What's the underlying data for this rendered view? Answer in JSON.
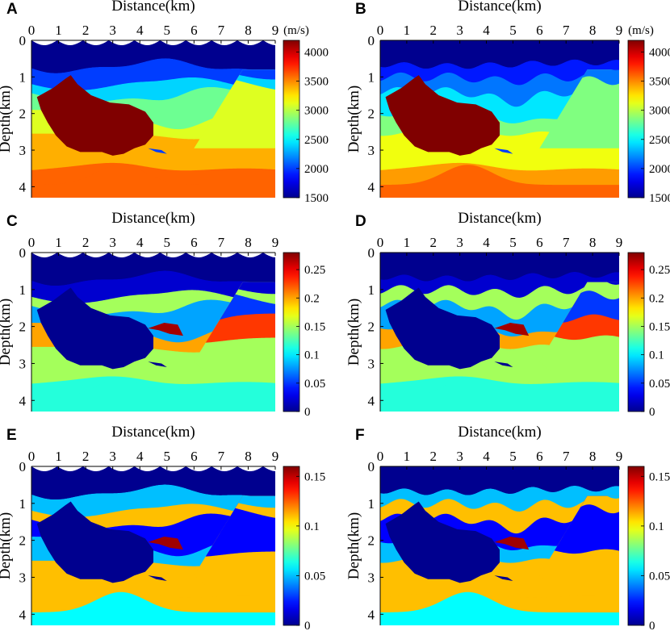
{
  "figure": {
    "panels": [
      {
        "letter": "A",
        "xlabel": "Distance(km)",
        "ylabel": "Depth(km)",
        "colorbar": {
          "ticks": [
            "1500",
            "2000",
            "2500",
            "3000",
            "3500",
            "4000"
          ],
          "unit": "(m/s)",
          "range": [
            1500,
            4200
          ]
        }
      },
      {
        "letter": "B",
        "xlabel": "Distance(km)",
        "ylabel": "Depth(km)",
        "colorbar": {
          "ticks": [
            "1500",
            "2000",
            "2500",
            "3000",
            "3500",
            "4000"
          ],
          "unit": "(m/s)",
          "range": [
            1500,
            4200
          ]
        }
      },
      {
        "letter": "C",
        "xlabel": "Distance(km)",
        "ylabel": "Depth(km)",
        "colorbar": {
          "ticks": [
            "0",
            "0.05",
            "0.1",
            "0.15",
            "0.2",
            "0.25"
          ],
          "unit": "",
          "range": [
            0,
            0.28
          ]
        }
      },
      {
        "letter": "D",
        "xlabel": "Distance(km)",
        "ylabel": "Depth(km)",
        "colorbar": {
          "ticks": [
            "0",
            "0.05",
            "0.1",
            "0.15",
            "0.2",
            "0.25"
          ],
          "unit": "",
          "range": [
            0,
            0.28
          ]
        }
      },
      {
        "letter": "E",
        "xlabel": "Distance(km)",
        "ylabel": "Depth(km)",
        "colorbar": {
          "ticks": [
            "0",
            "0.05",
            "0.1",
            "0.15"
          ],
          "unit": "",
          "range": [
            0,
            0.16
          ]
        }
      },
      {
        "letter": "F",
        "xlabel": "Distance(km)",
        "ylabel": "Depth(km)",
        "colorbar": {
          "ticks": [
            "0",
            "0.05",
            "0.1",
            "0.15"
          ],
          "unit": "",
          "range": [
            0,
            0.16
          ]
        }
      }
    ]
  },
  "chart_data": [
    {
      "type": "heatmap",
      "panel": "A",
      "title": "",
      "xlabel": "Distance(km)",
      "ylabel": "Depth(km)",
      "x_ticks": [
        "0",
        "1",
        "2",
        "3",
        "4",
        "5",
        "6",
        "7",
        "8",
        "9"
      ],
      "y_ticks": [
        "0",
        "1",
        "2",
        "3",
        "4"
      ],
      "xlim": [
        0,
        9
      ],
      "ylim": [
        0,
        4.3
      ],
      "colorbar_ticks": [
        1500,
        2000,
        2500,
        3000,
        3500,
        4000
      ],
      "colorbar_unit": "(m/s)",
      "crange": [
        1500,
        4200
      ],
      "layers_top_to_bottom": [
        1500,
        2000,
        2400,
        2800,
        3100,
        3400,
        3600
      ],
      "salt_body": 4200,
      "fault_x_km": [
        6.0,
        7.8
      ]
    },
    {
      "type": "heatmap",
      "panel": "B",
      "title": "",
      "xlabel": "Distance(km)",
      "ylabel": "Depth(km)",
      "x_ticks": [
        "0",
        "1",
        "2",
        "3",
        "4",
        "5",
        "6",
        "7",
        "8",
        "9"
      ],
      "y_ticks": [
        "0",
        "1",
        "2",
        "3",
        "4"
      ],
      "xlim": [
        0,
        9
      ],
      "ylim": [
        0,
        4.3
      ],
      "colorbar_ticks": [
        1500,
        2000,
        2500,
        3000,
        3500,
        4000
      ],
      "colorbar_unit": "(m/s)",
      "crange": [
        1500,
        4200
      ],
      "layers_top_to_bottom": [
        1500,
        1900,
        2100,
        2400,
        2800,
        3100,
        3400,
        3600
      ],
      "salt_body": 4200,
      "fault_x_km": [
        6.0,
        7.8
      ]
    },
    {
      "type": "heatmap",
      "panel": "C",
      "title": "",
      "xlabel": "Distance(km)",
      "ylabel": "Depth(km)",
      "x_ticks": [
        "0",
        "1",
        "2",
        "3",
        "4",
        "5",
        "6",
        "7",
        "8",
        "9"
      ],
      "y_ticks": [
        "0",
        "1",
        "2",
        "3",
        "4"
      ],
      "xlim": [
        0,
        9
      ],
      "ylim": [
        0,
        4.3
      ],
      "colorbar_ticks": [
        0,
        0.05,
        0.1,
        0.15,
        0.2,
        0.25
      ],
      "crange": [
        0,
        0.28
      ],
      "layers_top_to_bottom": [
        0,
        0.02,
        0.15,
        0.08,
        0.2,
        0.15,
        0.23,
        0.15,
        0.11
      ],
      "salt_body": 0,
      "lens_value": 0.27
    },
    {
      "type": "heatmap",
      "panel": "D",
      "title": "",
      "xlabel": "Distance(km)",
      "ylabel": "Depth(km)",
      "x_ticks": [
        "0",
        "1",
        "2",
        "3",
        "4",
        "5",
        "6",
        "7",
        "8",
        "9"
      ],
      "y_ticks": [
        "0",
        "1",
        "2",
        "3",
        "4"
      ],
      "xlim": [
        0,
        9
      ],
      "ylim": [
        0,
        4.3
      ],
      "colorbar_ticks": [
        0,
        0.05,
        0.1,
        0.15,
        0.2,
        0.25
      ],
      "crange": [
        0,
        0.28
      ],
      "layers_top_to_bottom": [
        0,
        0.02,
        0.15,
        0.08,
        0.2,
        0.15,
        0.23,
        0.15,
        0.11
      ],
      "salt_body": 0,
      "lens_value": 0.27
    },
    {
      "type": "heatmap",
      "panel": "E",
      "title": "",
      "xlabel": "Distance(km)",
      "ylabel": "Depth(km)",
      "x_ticks": [
        "0",
        "1",
        "2",
        "3",
        "4",
        "5",
        "6",
        "7",
        "8",
        "9"
      ],
      "y_ticks": [
        "0",
        "1",
        "2",
        "3",
        "4"
      ],
      "xlim": [
        0,
        9
      ],
      "ylim": [
        0,
        4.3
      ],
      "colorbar_ticks": [
        0,
        0.05,
        0.1,
        0.15
      ],
      "crange": [
        0,
        0.16
      ],
      "layers_top_to_bottom": [
        0,
        0.05,
        0.11,
        0.02,
        0.05,
        0.02,
        0.11,
        0.06
      ],
      "salt_body": 0,
      "lens_value": 0.155
    },
    {
      "type": "heatmap",
      "panel": "F",
      "title": "",
      "xlabel": "Distance(km)",
      "ylabel": "Depth(km)",
      "x_ticks": [
        "0",
        "1",
        "2",
        "3",
        "4",
        "5",
        "6",
        "7",
        "8",
        "9"
      ],
      "y_ticks": [
        "0",
        "1",
        "2",
        "3",
        "4"
      ],
      "xlim": [
        0,
        9
      ],
      "ylim": [
        0,
        4.3
      ],
      "colorbar_ticks": [
        0,
        0.05,
        0.1,
        0.15
      ],
      "crange": [
        0,
        0.16
      ],
      "layers_top_to_bottom": [
        0,
        0.05,
        0.11,
        0.02,
        0.05,
        0.02,
        0.11,
        0.06
      ],
      "salt_body": 0,
      "lens_value": 0.155
    }
  ]
}
